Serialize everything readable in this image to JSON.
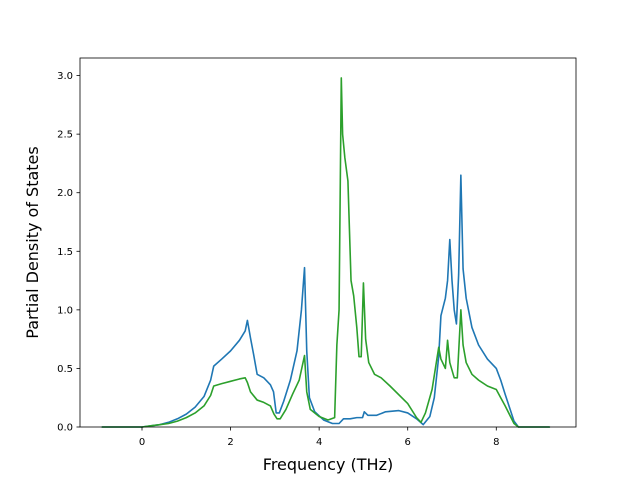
{
  "chart_data": {
    "type": "line",
    "title": "",
    "xlabel": "Frequency (THz)",
    "ylabel": "Partial Density of States",
    "xlim": [
      -1.4,
      9.8
    ],
    "ylim": [
      0.0,
      3.15
    ],
    "xticks": [
      0,
      2,
      4,
      6,
      8
    ],
    "xtick_labels": [
      "0",
      "2",
      "4",
      "6",
      "8"
    ],
    "yticks": [
      0.0,
      0.5,
      1.0,
      1.5,
      2.0,
      2.5,
      3.0
    ],
    "ytick_labels": [
      "0.0",
      "0.5",
      "1.0",
      "1.5",
      "2.0",
      "2.5",
      "3.0"
    ],
    "grid": false,
    "legend": false,
    "series": [
      {
        "color": "#1f77b4",
        "x": [
          -0.9,
          0.0,
          0.2,
          0.4,
          0.6,
          0.8,
          1.0,
          1.2,
          1.4,
          1.55,
          1.62,
          1.8,
          2.0,
          2.2,
          2.33,
          2.38,
          2.45,
          2.52,
          2.6,
          2.75,
          2.9,
          2.97,
          3.03,
          3.1,
          3.2,
          3.35,
          3.5,
          3.6,
          3.67,
          3.72,
          3.78,
          3.9,
          4.1,
          4.3,
          4.45,
          4.55,
          4.7,
          4.85,
          4.98,
          5.02,
          5.1,
          5.3,
          5.5,
          5.8,
          6.0,
          6.2,
          6.35,
          6.5,
          6.6,
          6.7,
          6.75,
          6.85,
          6.9,
          6.95,
          7.0,
          7.05,
          7.1,
          7.15,
          7.2,
          7.25,
          7.32,
          7.45,
          7.6,
          7.8,
          8.0,
          8.1,
          8.2,
          8.4,
          8.5,
          9.2
        ],
        "values": [
          0.0,
          0.0,
          0.01,
          0.02,
          0.04,
          0.07,
          0.11,
          0.17,
          0.26,
          0.4,
          0.52,
          0.58,
          0.65,
          0.74,
          0.82,
          0.91,
          0.76,
          0.62,
          0.45,
          0.42,
          0.36,
          0.3,
          0.12,
          0.12,
          0.22,
          0.4,
          0.65,
          1.0,
          1.36,
          0.65,
          0.25,
          0.13,
          0.06,
          0.03,
          0.03,
          0.07,
          0.07,
          0.08,
          0.08,
          0.13,
          0.1,
          0.1,
          0.13,
          0.14,
          0.12,
          0.07,
          0.02,
          0.09,
          0.25,
          0.6,
          0.95,
          1.1,
          1.25,
          1.6,
          1.25,
          1.0,
          0.88,
          1.3,
          2.15,
          1.35,
          1.1,
          0.85,
          0.7,
          0.58,
          0.5,
          0.4,
          0.28,
          0.05,
          0.0,
          0.0
        ]
      },
      {
        "color": "#2ca02c",
        "x": [
          -0.9,
          0.0,
          0.2,
          0.4,
          0.6,
          0.8,
          1.0,
          1.2,
          1.4,
          1.55,
          1.62,
          1.8,
          2.0,
          2.2,
          2.33,
          2.38,
          2.45,
          2.6,
          2.75,
          2.9,
          2.98,
          3.05,
          3.12,
          3.25,
          3.4,
          3.55,
          3.67,
          3.72,
          3.8,
          4.0,
          4.2,
          4.35,
          4.4,
          4.45,
          4.5,
          4.53,
          4.58,
          4.65,
          4.72,
          4.78,
          4.85,
          4.9,
          4.95,
          5.0,
          5.05,
          5.12,
          5.25,
          5.4,
          5.6,
          6.0,
          6.2,
          6.3,
          6.4,
          6.55,
          6.7,
          6.75,
          6.85,
          6.9,
          6.95,
          7.05,
          7.12,
          7.2,
          7.25,
          7.32,
          7.45,
          7.6,
          7.8,
          8.0,
          8.1,
          8.2,
          8.4,
          8.5,
          9.2
        ],
        "values": [
          0.0,
          0.0,
          0.01,
          0.02,
          0.03,
          0.05,
          0.08,
          0.12,
          0.18,
          0.27,
          0.35,
          0.37,
          0.39,
          0.41,
          0.42,
          0.38,
          0.3,
          0.23,
          0.21,
          0.18,
          0.11,
          0.07,
          0.07,
          0.15,
          0.28,
          0.4,
          0.61,
          0.3,
          0.15,
          0.09,
          0.06,
          0.08,
          0.7,
          1.0,
          2.98,
          2.5,
          2.3,
          2.1,
          1.25,
          1.12,
          0.85,
          0.6,
          0.6,
          1.23,
          0.75,
          0.55,
          0.45,
          0.42,
          0.35,
          0.2,
          0.08,
          0.04,
          0.12,
          0.32,
          0.68,
          0.58,
          0.5,
          0.74,
          0.55,
          0.42,
          0.42,
          1.0,
          0.7,
          0.55,
          0.45,
          0.4,
          0.35,
          0.32,
          0.25,
          0.18,
          0.03,
          0.0,
          0.0
        ]
      }
    ]
  }
}
